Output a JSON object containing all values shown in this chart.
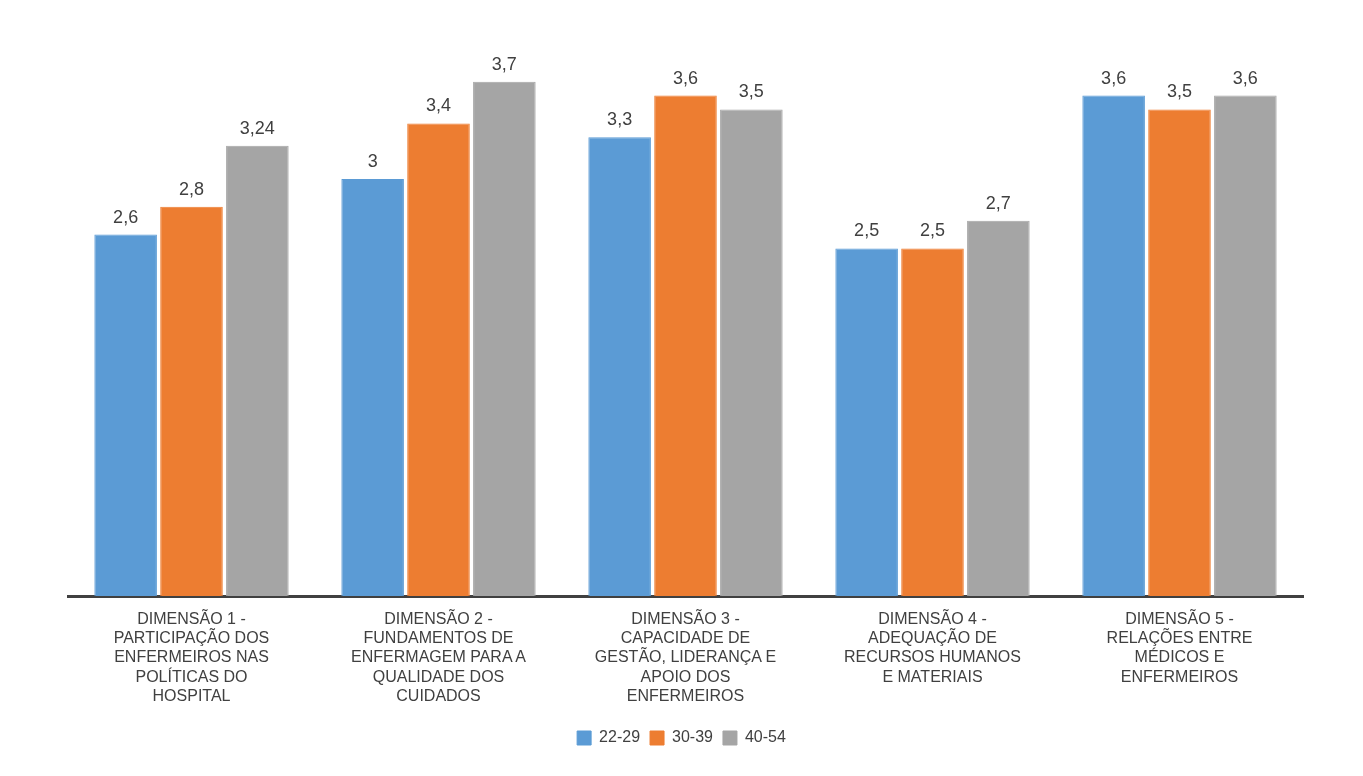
{
  "chart_data": {
    "type": "bar",
    "categories": [
      "DIMENSÃO 1 - PARTICIPAÇÃO DOS ENFERMEIROS NAS POLÍTICAS DO HOSPITAL",
      "DIMENSÃO 2 - FUNDAMENTOS DE ENFERMAGEM PARA A QUALIDADE DOS CUIDADOS",
      "DIMENSÃO 3 - CAPACIDADE DE GESTÃO, LIDERANÇA E APOIO DOS ENFERMEIROS",
      "DIMENSÃO 4 - ADEQUAÇÃO DE RECURSOS HUMANOS E MATERIAIS",
      "DIMENSÃO 5 - RELAÇÕES ENTRE MÉDICOS E ENFERMEIROS"
    ],
    "series": [
      {
        "name": "22-29",
        "color": "#5b9bd5",
        "values": [
          2.6,
          3,
          3.3,
          2.5,
          3.6
        ],
        "value_labels": [
          "2,6",
          "3",
          "3,3",
          "2,5",
          "3,6"
        ]
      },
      {
        "name": "30-39",
        "color": "#ed7d31",
        "values": [
          2.8,
          3.4,
          3.6,
          2.5,
          3.5
        ],
        "value_labels": [
          "2,8",
          "3,4",
          "3,6",
          "2,5",
          "3,5"
        ]
      },
      {
        "name": "40-54",
        "color": "#a5a5a5",
        "values": [
          3.24,
          3.7,
          3.5,
          2.7,
          3.6
        ],
        "value_labels": [
          "3,24",
          "3,7",
          "3,5",
          "2,7",
          "3,6"
        ]
      }
    ],
    "relative": false,
    "legend": "bottom",
    "grid": false
  }
}
